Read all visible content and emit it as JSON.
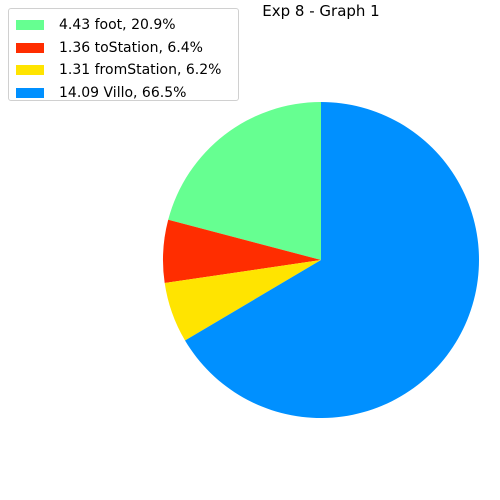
{
  "chart_data": {
    "type": "pie",
    "title": "Exp 8 - Graph 1",
    "start_angle_deg": 90,
    "direction": "counterclockwise",
    "legend_position": "top-left",
    "slices": [
      {
        "label": "4.43 foot, 20.9%",
        "category": "foot",
        "value": 4.43,
        "percent": 20.9,
        "color": "#66ff91"
      },
      {
        "label": "1.36 toStation, 6.4%",
        "category": "toStation",
        "value": 1.36,
        "percent": 6.4,
        "color": "#ff2d00"
      },
      {
        "label": "1.31 fromStation, 6.2%",
        "category": "fromStation",
        "value": 1.31,
        "percent": 6.2,
        "color": "#ffe400"
      },
      {
        "label": "14.09 Villo, 66.5%",
        "category": "Villo",
        "value": 14.09,
        "percent": 66.5,
        "color": "#0090ff"
      }
    ]
  }
}
